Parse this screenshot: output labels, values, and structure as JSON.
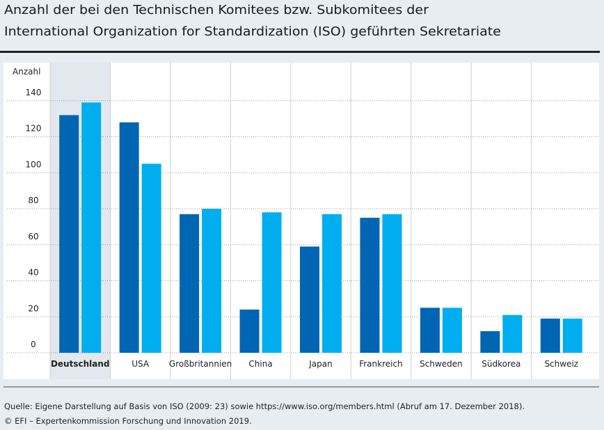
{
  "chart_data": {
    "type": "bar",
    "title": [
      "Anzahl der bei den Technischen Komitees bzw. Subkomitees der",
      "International Organization for Standardization (ISO) geführten Sekretariate"
    ],
    "y_label": "Anzahl",
    "categories": [
      "Deutschland",
      "USA",
      "Großbritannien",
      "China",
      "Japan",
      "Frankreich",
      "Schweden",
      "Südkorea",
      "Schweiz"
    ],
    "series": [
      {
        "color": "#0066b3",
        "values": [
          132,
          128,
          77,
          24,
          59,
          75,
          25,
          12,
          19
        ]
      },
      {
        "color": "#00aeef",
        "values": [
          139,
          105,
          80,
          78,
          77,
          77,
          25,
          21,
          19
        ]
      }
    ],
    "highlight_index": 0,
    "ylim": [
      0,
      160
    ],
    "yticks": [
      0,
      20,
      40,
      60,
      80,
      100,
      120,
      140
    ],
    "grid": true,
    "source": [
      "Quelle: Eigene Darstellung auf Basis von ISO (2009: 23) sowie https://www.iso.org/members.html (Abruf am 17. Dezember 2018).",
      "© EFI – Expertenkommission Forschung und Innovation 2019."
    ]
  }
}
